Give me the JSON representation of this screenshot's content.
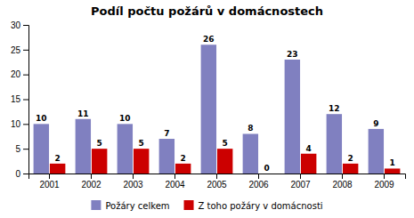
{
  "chart_data": {
    "type": "bar",
    "title": "Podíl počtu požárů v domácnostech",
    "categories": [
      2001,
      2002,
      2003,
      2004,
      2005,
      2006,
      2007,
      2008,
      2009
    ],
    "series": [
      {
        "name": "Požáry celkem",
        "color": "#8080c0",
        "values": [
          10,
          11,
          10,
          7,
          26,
          8,
          23,
          12,
          9
        ]
      },
      {
        "name": "Z toho požáry v domácnosti",
        "color": "#cc0000",
        "values": [
          2,
          5,
          5,
          2,
          5,
          0,
          4,
          2,
          1
        ]
      }
    ],
    "ylim": [
      0,
      30
    ],
    "yticks": [
      0,
      5,
      10,
      15,
      20,
      25,
      30
    ],
    "grid": false,
    "legend": "bottom",
    "data_labels": true
  }
}
